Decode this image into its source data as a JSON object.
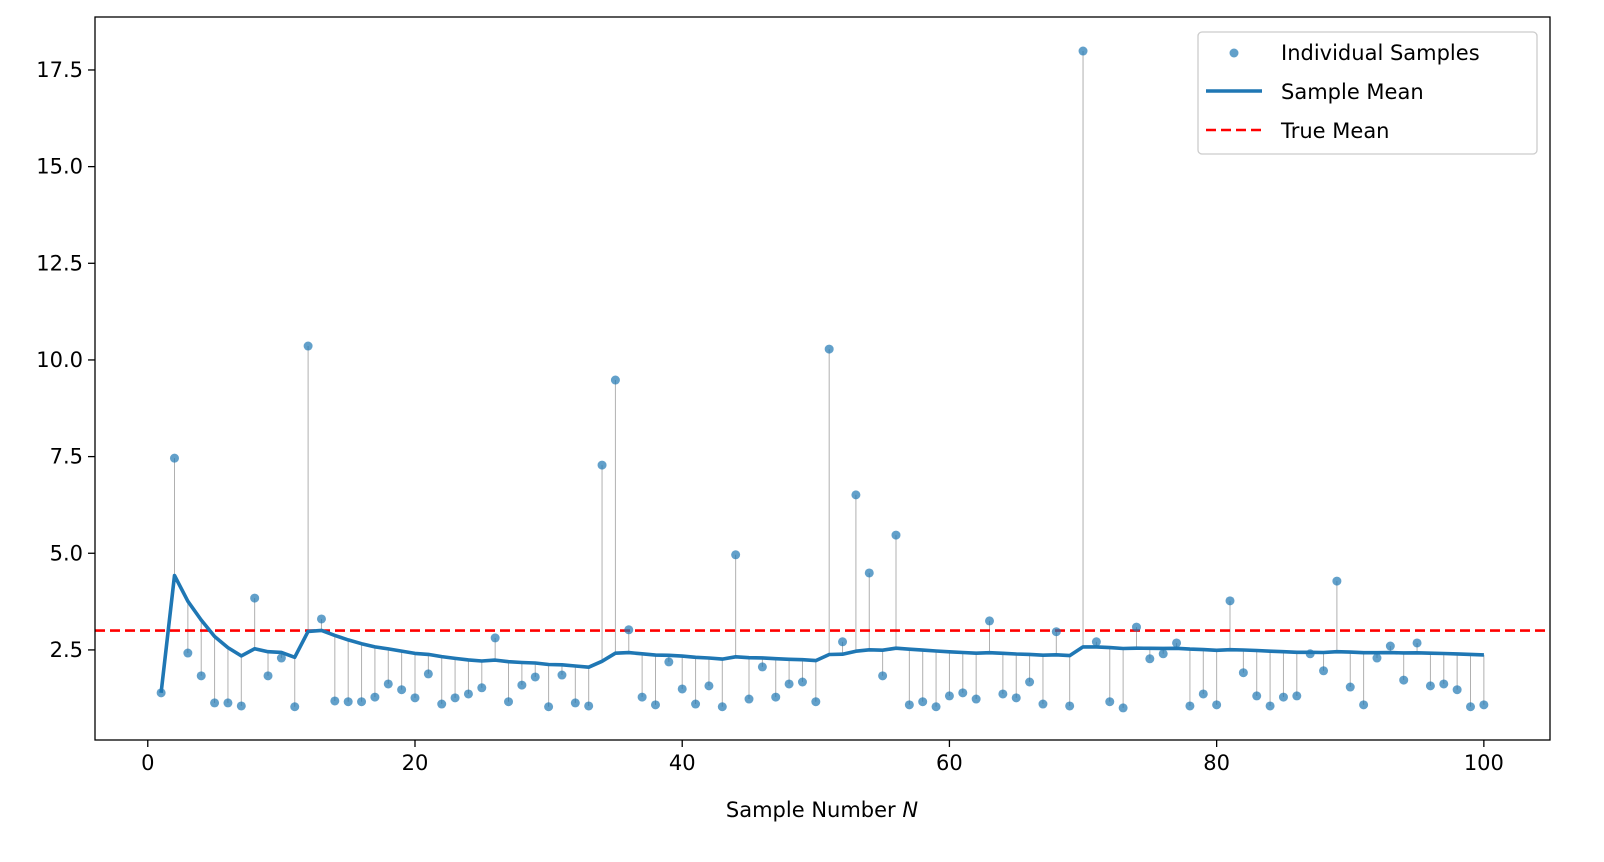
{
  "chart_data": {
    "type": "scatter",
    "title": "",
    "xlabel": "Sample Number N",
    "xlabel_main": "Sample Number ",
    "xlabel_italic": "N",
    "ylabel": "",
    "xlim": [
      -3.95,
      104.95
    ],
    "ylim": [
      0.17,
      18.87
    ],
    "xticks": [
      0,
      20,
      40,
      60,
      80,
      100
    ],
    "xtick_labels": [
      "0",
      "20",
      "40",
      "60",
      "80",
      "100"
    ],
    "yticks": [
      2.5,
      5.0,
      7.5,
      10.0,
      12.5,
      15.0,
      17.5
    ],
    "ytick_labels": [
      "2.5",
      "5.0",
      "7.5",
      "10.0",
      "12.5",
      "15.0",
      "17.5"
    ],
    "grid": false,
    "legend_position": "top-right",
    "legend": [
      "Individual Samples",
      "Sample Mean",
      "True Mean"
    ],
    "true_mean": 3.0,
    "colors": {
      "samples": "#1f77b4",
      "mean": "#1f77b4",
      "true_mean": "#ff0000",
      "stem": "#b0b0b0"
    },
    "series": [
      {
        "name": "Individual Samples",
        "type": "scatter",
        "x": [
          1,
          2,
          3,
          4,
          5,
          6,
          7,
          8,
          9,
          10,
          11,
          12,
          13,
          14,
          15,
          16,
          17,
          18,
          19,
          20,
          21,
          22,
          23,
          24,
          25,
          26,
          27,
          28,
          29,
          30,
          31,
          32,
          33,
          34,
          35,
          36,
          37,
          38,
          39,
          40,
          41,
          42,
          43,
          44,
          45,
          46,
          47,
          48,
          49,
          50,
          51,
          52,
          53,
          54,
          55,
          56,
          57,
          58,
          59,
          60,
          61,
          62,
          63,
          64,
          65,
          66,
          67,
          68,
          69,
          70,
          71,
          72,
          73,
          74,
          75,
          76,
          77,
          78,
          79,
          80,
          81,
          82,
          83,
          84,
          85,
          86,
          87,
          88,
          89,
          90,
          91,
          92,
          93,
          94,
          95,
          96,
          97,
          98,
          99,
          100
        ],
        "values": [
          1.39,
          7.46,
          2.42,
          1.83,
          1.13,
          1.13,
          1.05,
          3.84,
          1.83,
          2.29,
          1.03,
          10.36,
          3.3,
          1.18,
          1.16,
          1.16,
          1.28,
          1.62,
          1.47,
          1.26,
          1.88,
          1.1,
          1.26,
          1.36,
          1.52,
          2.81,
          1.16,
          1.59,
          1.8,
          1.03,
          1.85,
          1.13,
          1.05,
          7.28,
          9.48,
          3.02,
          1.28,
          1.08,
          2.19,
          1.49,
          1.1,
          1.57,
          1.03,
          4.96,
          1.23,
          2.06,
          1.28,
          1.62,
          1.67,
          1.16,
          10.28,
          2.71,
          6.51,
          4.49,
          1.83,
          5.47,
          1.08,
          1.16,
          1.03,
          1.31,
          1.39,
          1.23,
          3.25,
          1.36,
          1.26,
          1.67,
          1.1,
          2.97,
          1.05,
          17.99,
          2.71,
          1.16,
          1.0,
          3.09,
          2.27,
          2.4,
          2.68,
          1.05,
          1.36,
          1.08,
          3.77,
          1.91,
          1.31,
          1.05,
          1.28,
          1.31,
          2.4,
          1.96,
          4.28,
          1.54,
          1.08,
          2.29,
          2.6,
          1.72,
          2.68,
          1.57,
          1.62,
          1.47,
          1.03,
          1.08
        ]
      },
      {
        "name": "Sample Mean",
        "type": "line",
        "derived": "cumulative mean of Individual Samples"
      },
      {
        "name": "True Mean",
        "type": "hline",
        "value": 3.0
      }
    ]
  }
}
